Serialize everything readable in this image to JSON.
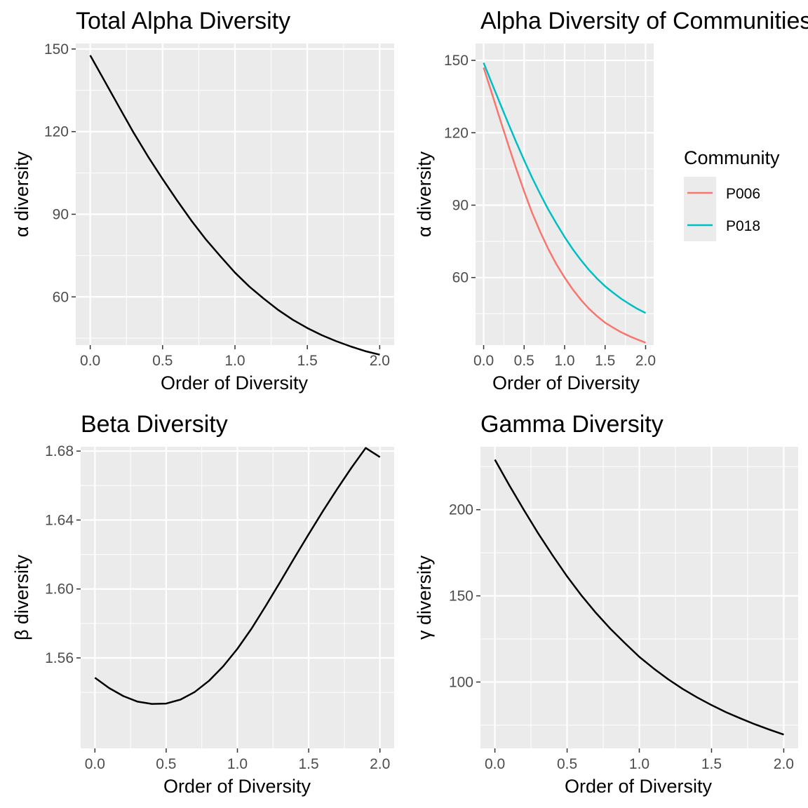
{
  "chart_data": [
    {
      "type": "line",
      "title": "Total Alpha Diversity",
      "xlabel": "Order of Diversity",
      "ylabel": "α diversity",
      "xlim": [
        -0.1,
        2.1
      ],
      "ylim": [
        42.5,
        152
      ],
      "x_ticks": [
        0.0,
        0.5,
        1.0,
        1.5,
        2.0
      ],
      "x_tick_labels": [
        "0.0",
        "0.5",
        "1.0",
        "1.5",
        "2.0"
      ],
      "y_ticks": [
        60,
        90,
        120,
        150
      ],
      "y_tick_labels": [
        "60",
        "90",
        "120",
        "150"
      ],
      "grid": true,
      "series": [
        {
          "color": "#000000",
          "x": [
            0.0,
            0.1,
            0.2,
            0.3,
            0.4,
            0.5,
            0.6,
            0.7,
            0.8,
            0.9,
            1.0,
            1.1,
            1.2,
            1.3,
            1.4,
            1.5,
            1.6,
            1.7,
            1.8,
            1.9,
            2.0
          ],
          "y": [
            147.7,
            138.3,
            128.9,
            119.6,
            110.9,
            102.8,
            95.0,
            87.6,
            80.8,
            74.7,
            68.8,
            63.7,
            59.3,
            55.2,
            51.7,
            48.7,
            46.1,
            43.9,
            42.0,
            40.3,
            39.0
          ]
        }
      ]
    },
    {
      "type": "line",
      "title": "Alpha Diversity of Communities",
      "xlabel": "Order of Diversity",
      "ylabel": "α diversity",
      "xlim": [
        -0.1,
        2.1
      ],
      "ylim": [
        32,
        157
      ],
      "x_ticks": [
        0.0,
        0.5,
        1.0,
        1.5,
        2.0
      ],
      "x_tick_labels": [
        "0.0",
        "0.5",
        "1.0",
        "1.5",
        "2.0"
      ],
      "y_ticks": [
        60,
        90,
        120,
        150
      ],
      "y_tick_labels": [
        "60",
        "90",
        "120",
        "150"
      ],
      "grid": true,
      "legend": {
        "title": "Community",
        "position": "right"
      },
      "series": [
        {
          "name": "P006",
          "color": "#F8766D",
          "x": [
            0.0,
            0.1,
            0.2,
            0.3,
            0.4,
            0.5,
            0.6,
            0.7,
            0.8,
            0.9,
            1.0,
            1.1,
            1.2,
            1.3,
            1.4,
            1.5,
            1.6,
            1.7,
            1.8,
            1.9,
            2.0
          ],
          "y": [
            147.0,
            136.5,
            125.9,
            115.4,
            105.3,
            95.7,
            86.7,
            78.8,
            71.7,
            65.4,
            60.0,
            55.1,
            50.8,
            47.1,
            44.0,
            41.3,
            39.2,
            37.3,
            35.7,
            34.3,
            33.0
          ]
        },
        {
          "name": "P018",
          "color": "#00BFC4",
          "x": [
            0.0,
            0.1,
            0.2,
            0.3,
            0.4,
            0.5,
            0.6,
            0.7,
            0.8,
            0.9,
            1.0,
            1.1,
            1.2,
            1.3,
            1.4,
            1.5,
            1.6,
            1.7,
            1.8,
            1.9,
            2.0
          ],
          "y": [
            149.0,
            140.6,
            132.4,
            124.2,
            116.3,
            108.6,
            101.3,
            94.5,
            88.1,
            82.3,
            76.8,
            71.8,
            67.3,
            63.2,
            59.6,
            56.4,
            53.7,
            51.2,
            49.0,
            47.0,
            45.3
          ]
        }
      ]
    },
    {
      "type": "line",
      "title": "Beta Diversity",
      "xlabel": "Order of Diversity",
      "ylabel": "β diversity",
      "xlim": [
        -0.1,
        2.1
      ],
      "ylim": [
        1.5075,
        1.6825
      ],
      "x_ticks": [
        0.0,
        0.5,
        1.0,
        1.5,
        2.0
      ],
      "x_tick_labels": [
        "0.0",
        "0.5",
        "1.0",
        "1.5",
        "2.0"
      ],
      "y_ticks": [
        1.56,
        1.6,
        1.64,
        1.68
      ],
      "y_tick_labels": [
        "1.56",
        "1.60",
        "1.64",
        "1.68"
      ],
      "grid": true,
      "series": [
        {
          "color": "#000000",
          "x": [
            0.0,
            0.1,
            0.2,
            0.3,
            0.4,
            0.5,
            0.6,
            0.7,
            0.8,
            0.9,
            1.0,
            1.1,
            1.2,
            1.3,
            1.4,
            1.5,
            1.6,
            1.7,
            1.8,
            1.9,
            2.0
          ],
          "y": [
            1.5485,
            1.5425,
            1.5378,
            1.5346,
            1.5333,
            1.5335,
            1.5358,
            1.5402,
            1.5467,
            1.5551,
            1.5653,
            1.5771,
            1.5903,
            1.6041,
            1.6181,
            1.6318,
            1.6452,
            1.658,
            1.6703,
            1.6818,
            1.6765
          ]
        }
      ]
    },
    {
      "type": "line",
      "title": "Gamma Diversity",
      "xlabel": "Order of Diversity",
      "ylabel": "γ diversity",
      "xlim": [
        -0.1,
        2.1
      ],
      "ylim": [
        61.5,
        236.5
      ],
      "x_ticks": [
        0.0,
        0.5,
        1.0,
        1.5,
        2.0
      ],
      "x_tick_labels": [
        "0.0",
        "0.5",
        "1.0",
        "1.5",
        "2.0"
      ],
      "y_ticks": [
        100,
        150,
        200
      ],
      "y_tick_labels": [
        "100",
        "150",
        "200"
      ],
      "grid": true,
      "series": [
        {
          "color": "#000000",
          "x": [
            0.0,
            0.1,
            0.2,
            0.3,
            0.4,
            0.5,
            0.6,
            0.7,
            0.8,
            0.9,
            1.0,
            1.1,
            1.2,
            1.3,
            1.4,
            1.5,
            1.6,
            1.7,
            1.8,
            1.9,
            2.0
          ],
          "y": [
            229.0,
            214.1,
            199.9,
            186.2,
            173.4,
            161.3,
            150.2,
            140.1,
            130.9,
            122.6,
            114.6,
            107.8,
            101.6,
            96.0,
            91.1,
            86.6,
            82.5,
            78.9,
            75.5,
            72.4,
            69.5
          ]
        }
      ]
    }
  ]
}
